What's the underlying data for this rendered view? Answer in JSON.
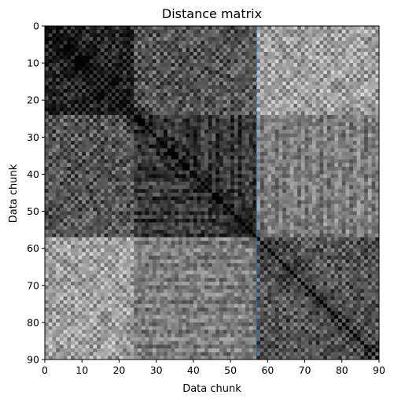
{
  "chart_data": {
    "type": "heatmap",
    "title": "Distance matrix",
    "xlabel": "Data chunk",
    "ylabel": "Data chunk",
    "size": 90,
    "xlim": [
      0,
      90
    ],
    "ylim": [
      90,
      0
    ],
    "x_ticks": [
      0,
      10,
      20,
      30,
      40,
      50,
      60,
      70,
      80,
      90
    ],
    "y_ticks": [
      0,
      10,
      20,
      30,
      40,
      50,
      60,
      70,
      80,
      90
    ],
    "colormap": "gray",
    "value_range": [
      0,
      1
    ],
    "diagonal_value": 0,
    "segments": [
      {
        "start": 0,
        "end": 24,
        "within_level": 0.12,
        "pattern": "checker"
      },
      {
        "start": 24,
        "end": 57,
        "within_level": 0.22,
        "pattern": "banded"
      },
      {
        "start": 57,
        "end": 90,
        "within_level": 0.32,
        "pattern": "checker"
      }
    ],
    "cross_levels": [
      {
        "a": 0,
        "b": 1,
        "level": 0.33
      },
      {
        "a": 0,
        "b": 2,
        "level": 0.62
      },
      {
        "a": 1,
        "b": 2,
        "level": 0.48
      }
    ],
    "vline": {
      "x": 57,
      "color": "#1f77b4",
      "style": "dashed"
    },
    "grid": false,
    "legend": "none"
  }
}
